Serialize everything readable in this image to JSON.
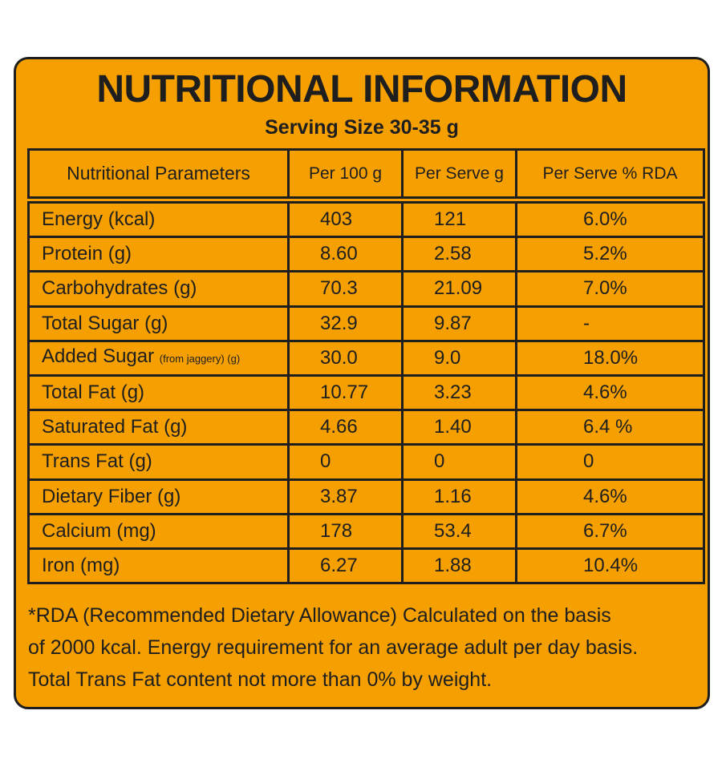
{
  "title": "NUTRITIONAL INFORMATION",
  "serving_size": "Serving Size 30-35 g",
  "columns": [
    "Nutritional Parameters",
    "Per 100 g",
    "Per Serve g",
    "Per Serve % RDA"
  ],
  "rows": [
    {
      "name": "Energy (kcal)",
      "note": "",
      "per100": "403",
      "perServe": "121",
      "rda": "6.0%"
    },
    {
      "name": "Protein (g)",
      "note": "",
      "per100": "8.60",
      "perServe": "2.58",
      "rda": "5.2%"
    },
    {
      "name": "Carbohydrates (g)",
      "note": "",
      "per100": "70.3",
      "perServe": "21.09",
      "rda": "7.0%"
    },
    {
      "name": "Total Sugar (g)",
      "note": "",
      "per100": "32.9",
      "perServe": "9.87",
      "rda": "-"
    },
    {
      "name": "Added Sugar ",
      "note": "(from jaggery) (g)",
      "per100": "30.0",
      "perServe": "9.0",
      "rda": "18.0%"
    },
    {
      "name": "Total Fat (g)",
      "note": "",
      "per100": "10.77",
      "perServe": "3.23",
      "rda": "4.6%"
    },
    {
      "name": "Saturated Fat (g)",
      "note": "",
      "per100": "4.66",
      "perServe": "1.40",
      "rda": "6.4 %"
    },
    {
      "name": "Trans Fat (g)",
      "note": "",
      "per100": "0",
      "perServe": "0",
      "rda": "0"
    },
    {
      "name": "Dietary Fiber (g)",
      "note": "",
      "per100": "3.87",
      "perServe": "1.16",
      "rda": "4.6%"
    },
    {
      "name": "Calcium (mg)",
      "note": "",
      "per100": "178",
      "perServe": "53.4",
      "rda": "6.7%"
    },
    {
      "name": "Iron (mg)",
      "note": "",
      "per100": "6.27",
      "perServe": "1.88",
      "rda": "10.4%"
    }
  ],
  "footer": {
    "line1": "*RDA (Recommended Dietary Allowance) Calculated on the basis",
    "line2": "of 2000 kcal. Energy requirement for an average adult per day basis.",
    "line3": "Total Trans Fat content not more than 0% by weight."
  },
  "colors": {
    "background": "#f5a000",
    "ink": "#1e1e1e"
  }
}
